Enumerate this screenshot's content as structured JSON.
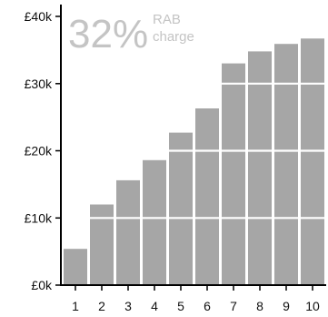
{
  "chart_data": {
    "type": "bar",
    "categories": [
      "1",
      "2",
      "3",
      "4",
      "5",
      "6",
      "7",
      "8",
      "9",
      "10"
    ],
    "values": [
      5400,
      12000,
      15600,
      18600,
      22700,
      26300,
      33000,
      34800,
      35900,
      36700
    ],
    "ylim": [
      0,
      40000
    ],
    "yticks": [
      0,
      10000,
      20000,
      30000,
      40000
    ],
    "ytick_labels": [
      "£0k",
      "£10k",
      "£20k",
      "£30k",
      "£40k"
    ],
    "grid": true,
    "legend": "none",
    "bar_color": "#a6a6a6",
    "annotation": {
      "percent": "32%",
      "line1": "RAB",
      "line2": "charge"
    }
  }
}
